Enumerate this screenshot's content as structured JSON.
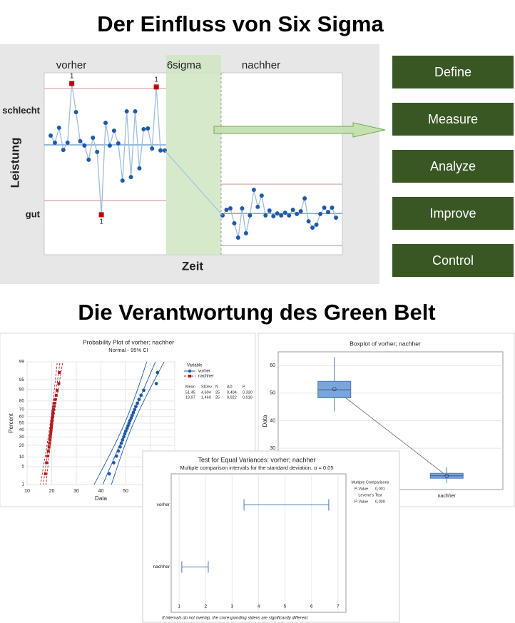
{
  "slide": {
    "title": "Der Einfluss von Six Sigma",
    "subtitle": "Die Verantwortung des Green Belt",
    "process_steps": [
      "Define",
      "Measure",
      "Analyze",
      "Improve",
      "Control"
    ]
  },
  "chart_data": [
    {
      "type": "line",
      "axis_labels": {
        "y": "Leistung",
        "x": "Zeit"
      },
      "transition_label": "6sigma",
      "ylim": [
        0,
        100
      ],
      "yticks": [
        {
          "value": 79,
          "label": "schlecht"
        },
        {
          "value": 22,
          "label": "gut"
        }
      ],
      "series": [
        {
          "name": "vorher",
          "color": "#1f5aa6",
          "values": [
            65.5,
            61.6,
            69.8,
            57.6,
            61.6,
            94.1,
            78.4,
            62.4,
            60,
            52.2,
            64.3,
            56.5,
            22,
            72.5,
            60,
            68.2,
            61.2,
            40.8,
            78.8,
            42.7,
            78.8,
            47.5,
            69,
            69.4,
            58.4,
            92.2,
            57.3,
            57.3
          ],
          "point_labels": [
            null,
            null,
            null,
            null,
            null,
            "1",
            null,
            null,
            null,
            null,
            null,
            null,
            "1",
            null,
            null,
            null,
            null,
            null,
            null,
            null,
            null,
            null,
            null,
            null,
            null,
            "1",
            null,
            null
          ],
          "limits": {
            "center": 60.4,
            "ucl": 91.4,
            "lcl": 29.8
          }
        },
        {
          "name": "nachher",
          "color": "#1f5aa6",
          "values": [
            21.6,
            24.7,
            25.5,
            17.3,
            9.4,
            25.5,
            11.8,
            21.6,
            35.7,
            26.3,
            32.5,
            21.6,
            24.3,
            21.2,
            22.7,
            21.6,
            23.1,
            21.6,
            24.7,
            22.4,
            23.9,
            31,
            18.4,
            14.9,
            16.5,
            22.4,
            25.9,
            23.5,
            25.9,
            20.4
          ],
          "limits": {
            "center": 22.7,
            "ucl": 38.8,
            "lcl": 5.1
          }
        }
      ]
    },
    {
      "type": "probability",
      "title": "Probability Plot of vorher; nachher",
      "subtitle": "Normal - 95% CI",
      "x_label": "Data",
      "y_label": "Percent",
      "xlim": [
        10,
        70
      ],
      "xticks": [
        10,
        20,
        30,
        40,
        50,
        60,
        70
      ],
      "ylim": [
        1,
        99
      ],
      "yticks": [
        1,
        5,
        10,
        20,
        30,
        40,
        50,
        60,
        70,
        80,
        90,
        95,
        99
      ],
      "legend_title": "Variable",
      "series": [
        {
          "name": "vorher",
          "color": "#1f5aa6",
          "mean": 51.45,
          "stdev": 4.604,
          "n": 25,
          "values": [
            43.4,
            45.2,
            46.3,
            47.1,
            47.8,
            48.3,
            48.8,
            49.3,
            49.7,
            50.1,
            50.6,
            51.0,
            51.4,
            51.8,
            52.3,
            52.7,
            53.2,
            53.7,
            54.2,
            54.8,
            55.5,
            56.3,
            57.4,
            62.5,
            63.0
          ]
        },
        {
          "name": "nachher",
          "color": "#b01c1c",
          "mean": 19.97,
          "stdev": 1.469,
          "n": 25,
          "values": [
            17.4,
            17.9,
            18.3,
            18.6,
            18.9,
            19.1,
            19.3,
            19.4,
            19.6,
            19.7,
            19.8,
            19.9,
            20.0,
            20.1,
            20.2,
            20.4,
            20.5,
            20.7,
            20.9,
            21.1,
            21.4,
            21.8,
            22.2,
            22.9,
            23.1
          ]
        }
      ],
      "stats_table": {
        "header": [
          "Mean",
          "StDev",
          "N",
          "AD",
          "P"
        ],
        "rows": [
          [
            "51,45",
            "4,604",
            "25",
            "0,404",
            "0,330"
          ],
          [
            "19,97",
            "1,469",
            "25",
            "0,922",
            "0,016"
          ]
        ]
      }
    },
    {
      "type": "box",
      "title": "Boxplot of vorher; nachher",
      "y_label": "Data",
      "categories": [
        null,
        "nachher"
      ],
      "ylim": [
        15,
        65
      ],
      "yticks": [
        30,
        40,
        50,
        60
      ],
      "color": "#7ba7d8",
      "values": [
        {
          "min": 43.4,
          "q1": 48.3,
          "median": 51.2,
          "q3": 54.3,
          "max": 63,
          "mean": 51.45
        },
        {
          "min": 17.4,
          "q1": 19.1,
          "median": 20.0,
          "q3": 20.9,
          "max": 23.1,
          "mean": 19.97
        }
      ]
    },
    {
      "type": "interval",
      "title": "Test for Equal Variances: vorher; nachher",
      "subtitle": "Multiple comparison intervals for the standard deviation, α = 0,05",
      "categories": [
        "vorher",
        "nachher"
      ],
      "xlim": [
        0.7,
        7.3
      ],
      "xticks": [
        1,
        2,
        3,
        4,
        5,
        6,
        7
      ],
      "color": "#4a77b4",
      "values": [
        {
          "lower": 3.45,
          "upper": 6.65
        },
        {
          "lower": 1.1,
          "upper": 2.1
        }
      ],
      "notes": {
        "heading": "Multiple Comparisons",
        "mc_label": "P-Value",
        "mc_value": "0,001",
        "levene_heading": "Levene's Test",
        "levene_label": "P-Value",
        "levene_value": "0,000"
      },
      "footer": "If intervals do not overlap, the corresponding stdevs are significantly different."
    }
  ]
}
